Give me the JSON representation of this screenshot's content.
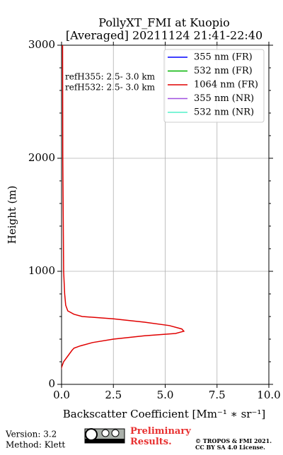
{
  "chart_data": {
    "type": "line",
    "title": [
      "PollyXT_FMI at Kuopio",
      "[Averaged] 20211124 21:41-22:40"
    ],
    "xlabel": "Backscatter Coefficient [Mm⁻¹ ∗ sr⁻¹]",
    "ylabel": "Height (m)",
    "annotations": [
      "refH355:  2.5- 3.0 km",
      "refH532:  2.5- 3.0 km"
    ],
    "xlim": [
      0,
      10
    ],
    "ylim": [
      0,
      3000
    ],
    "xticks": [
      {
        "value": 0,
        "label": "0.0"
      },
      2.5,
      {
        "value": 5,
        "label": "5.0"
      },
      7.5,
      {
        "value": 10,
        "label": "10.0"
      }
    ],
    "yticks": [
      0,
      1000,
      2000,
      3000
    ],
    "grid": true,
    "legend": "upper right",
    "series": [
      {
        "name": "355 nm (FR)",
        "color": "#0000ff",
        "height": [],
        "values": []
      },
      {
        "name": "532 nm (FR)",
        "color": "#00b400",
        "height": [],
        "values": []
      },
      {
        "name": "1064 nm (FR)",
        "color": "#e00000",
        "height": [
          0,
          50,
          100,
          150,
          200,
          250,
          300,
          320,
          340,
          370,
          400,
          430,
          450,
          470,
          490,
          520,
          550,
          580,
          600,
          620,
          650,
          700,
          800,
          1000,
          2000,
          3000
        ],
        "values": [
          -0.1,
          -0.1,
          -0.05,
          0.0,
          0.1,
          0.3,
          0.5,
          0.6,
          0.9,
          1.5,
          2.5,
          4.0,
          5.5,
          5.9,
          5.8,
          5.2,
          4.0,
          2.5,
          1.0,
          0.6,
          0.3,
          0.2,
          0.15,
          0.1,
          0.06,
          0.05
        ]
      },
      {
        "name": "355 nm (NR)",
        "color": "#a050e0",
        "height": [],
        "values": []
      },
      {
        "name": "532 nm (NR)",
        "color": "#50f0c8",
        "height": [],
        "values": []
      }
    ]
  },
  "footer": {
    "version": "Version: 3.2",
    "method": "Method: Klett",
    "status": "Preliminary Results.",
    "copyright": [
      "© TROPOS & FMI 2021.",
      "CC BY SA 4.0 License."
    ]
  }
}
